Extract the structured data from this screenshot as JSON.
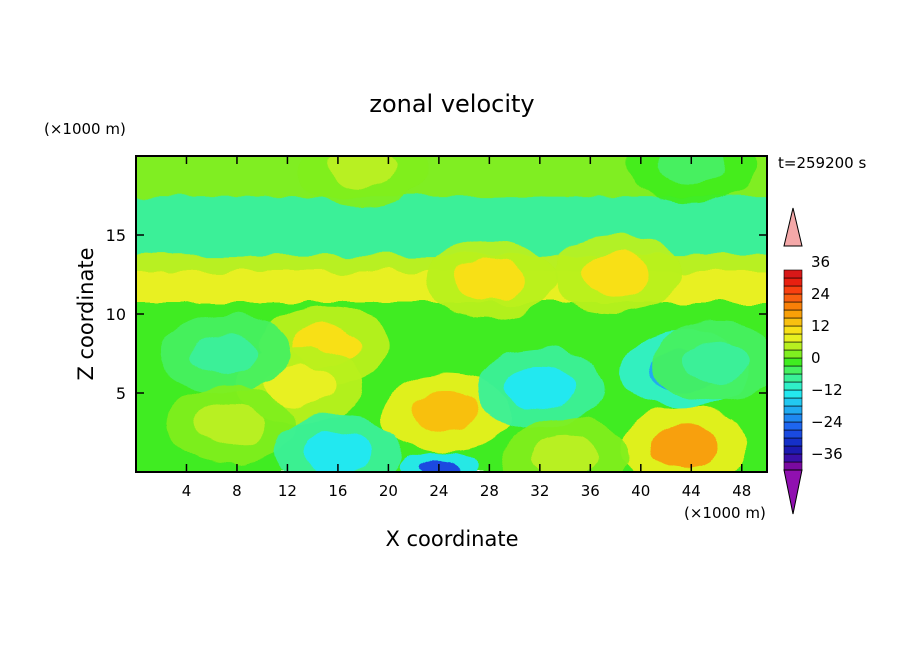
{
  "chart_data": {
    "type": "heatmap",
    "subtype": "filled-contour",
    "title": "zonal velocity",
    "xlabel": "X coordinate",
    "ylabel": "Z coordinate",
    "x_unit": "(×1000 m)",
    "y_unit": "(×1000 m)",
    "time_label": "t=259200 s",
    "xlim": [
      0,
      50
    ],
    "ylim": [
      0,
      20
    ],
    "xticks": [
      4,
      8,
      12,
      16,
      20,
      24,
      28,
      32,
      36,
      40,
      44,
      48
    ],
    "yticks": [
      5,
      10,
      15
    ],
    "grid": false,
    "colorbar": {
      "placement": "right",
      "levels": [
        -42,
        -39,
        -36,
        -33,
        -30,
        -27,
        -24,
        -21,
        -18,
        -15,
        -12,
        -9,
        -6,
        -3,
        0,
        3,
        6,
        9,
        12,
        15,
        18,
        21,
        24,
        27,
        30,
        33,
        36,
        39,
        42
      ],
      "tick_labels": [
        36,
        24,
        12,
        0,
        -12,
        -24,
        -36
      ],
      "colors": [
        "#7a0aa0",
        "#3a0fa8",
        "#1c1ab0",
        "#1530c8",
        "#1a4ae0",
        "#1e66f0",
        "#1e88f0",
        "#20aaf0",
        "#22c8f0",
        "#24e8f0",
        "#30f0c8",
        "#3af098",
        "#46f060",
        "#40ec20",
        "#80ee20",
        "#b8f020",
        "#e8f020",
        "#f8e018",
        "#f8c010",
        "#f8a008",
        "#f88008",
        "#f86010",
        "#f84010",
        "#e82010",
        "#d81818"
      ],
      "under_color": "#9010b0",
      "over_color": "#f4a8a8"
    },
    "bands": [
      {
        "z": [
          17.3,
          20
        ],
        "u": 1.5
      },
      {
        "z": [
          13.6,
          17.3
        ],
        "u": -8
      },
      {
        "z": [
          12.6,
          13.6
        ],
        "u": 3
      },
      {
        "z": [
          10.6,
          12.6
        ],
        "u": 8
      },
      {
        "z": [
          0,
          10.6
        ],
        "u": -1
      }
    ],
    "blobs": [
      {
        "x": 15,
        "z": 8,
        "u": 11
      },
      {
        "x": 13,
        "z": 5.5,
        "u": 7
      },
      {
        "x": 7,
        "z": 7.5,
        "u": -9
      },
      {
        "x": 7.5,
        "z": 3,
        "u": 5
      },
      {
        "x": 24.5,
        "z": 3.8,
        "u": 12
      },
      {
        "x": 24,
        "z": 0.3,
        "u": -28
      },
      {
        "x": 16,
        "z": 1.2,
        "u": -15
      },
      {
        "x": 32,
        "z": 5.3,
        "u": -14
      },
      {
        "x": 43.5,
        "z": 6.5,
        "u": -20
      },
      {
        "x": 46,
        "z": 7,
        "u": -9
      },
      {
        "x": 43.5,
        "z": 1.6,
        "u": 15
      },
      {
        "x": 34,
        "z": 1.0,
        "u": 3
      },
      {
        "x": 38,
        "z": 12.5,
        "u": 10
      },
      {
        "x": 28,
        "z": 12.2,
        "u": 9
      },
      {
        "x": 18,
        "z": 19.3,
        "u": 5
      },
      {
        "x": 44,
        "z": 19.5,
        "u": -6
      }
    ]
  }
}
